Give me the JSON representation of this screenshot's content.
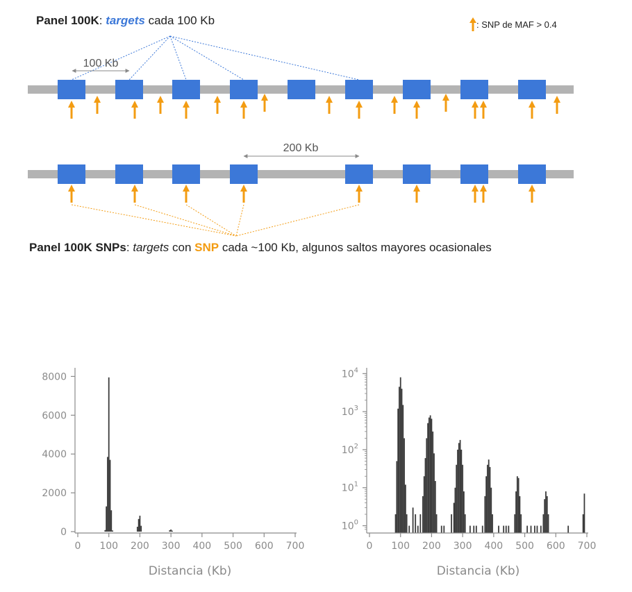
{
  "panel_top": {
    "name": "Panel 100K",
    "sep": ": ",
    "targets_word": "targets",
    "rest": " cada 100 Kb",
    "distance_label": "100 Kb"
  },
  "legend": {
    "text": ": SNP de MAF > 0.4",
    "arrow_color": "#f39c12"
  },
  "panel_bottom": {
    "name": "Panel 100K SNPs",
    "sep": ": ",
    "targets_word": "targets",
    "middle": " con ",
    "snp_word": "SNP",
    "rest": " cada ~100 Kb, algunos saltos mayores ocasionales",
    "distance_label": "200 Kb"
  },
  "colors": {
    "target_block": "#3c78d8",
    "chromosome": "#b3b3b3",
    "snp_arrow": "#f39c12",
    "bars": "#3a3a3a",
    "axis": "#8a8a8a"
  },
  "chart_data": [
    {
      "type": "bar",
      "scale": "linear",
      "xlabel": "Distancia (Kb)",
      "xticks": [
        0,
        100,
        200,
        300,
        400,
        500,
        600,
        700
      ],
      "yticks": [
        0,
        2000,
        4000,
        6000,
        8000
      ],
      "xlim": [
        0,
        700
      ],
      "ylim": [
        0,
        8300
      ],
      "bin_width": 4,
      "bins": [
        {
          "x": 88,
          "y": 80
        },
        {
          "x": 92,
          "y": 1300
        },
        {
          "x": 96,
          "y": 3850
        },
        {
          "x": 100,
          "y": 7950
        },
        {
          "x": 104,
          "y": 3700
        },
        {
          "x": 108,
          "y": 1100
        },
        {
          "x": 112,
          "y": 60
        },
        {
          "x": 192,
          "y": 250
        },
        {
          "x": 196,
          "y": 650
        },
        {
          "x": 200,
          "y": 820
        },
        {
          "x": 204,
          "y": 300
        },
        {
          "x": 296,
          "y": 70
        },
        {
          "x": 300,
          "y": 110
        },
        {
          "x": 304,
          "y": 50
        }
      ]
    },
    {
      "type": "bar",
      "scale": "log",
      "xlabel": "Distancia (Kb)",
      "xticks": [
        0,
        100,
        200,
        300,
        400,
        500,
        600,
        700
      ],
      "yticks": [
        1,
        10,
        100,
        1000,
        10000
      ],
      "ytick_labels": [
        [
          "10",
          "0"
        ],
        [
          "10",
          "1"
        ],
        [
          "10",
          "2"
        ],
        [
          "10",
          "3"
        ],
        [
          "10",
          "4"
        ]
      ],
      "xlim": [
        0,
        700
      ],
      "ylim": [
        0.7,
        12000
      ],
      "bin_width": 4,
      "bins": [
        {
          "x": 84,
          "y": 2
        },
        {
          "x": 88,
          "y": 50
        },
        {
          "x": 92,
          "y": 1200
        },
        {
          "x": 96,
          "y": 4500
        },
        {
          "x": 100,
          "y": 8000
        },
        {
          "x": 104,
          "y": 4000
        },
        {
          "x": 108,
          "y": 1500
        },
        {
          "x": 112,
          "y": 200
        },
        {
          "x": 116,
          "y": 12
        },
        {
          "x": 120,
          "y": 2
        },
        {
          "x": 128,
          "y": 1
        },
        {
          "x": 140,
          "y": 3
        },
        {
          "x": 148,
          "y": 2
        },
        {
          "x": 156,
          "y": 1
        },
        {
          "x": 164,
          "y": 2
        },
        {
          "x": 172,
          "y": 6
        },
        {
          "x": 176,
          "y": 20
        },
        {
          "x": 180,
          "y": 60
        },
        {
          "x": 184,
          "y": 200
        },
        {
          "x": 188,
          "y": 500
        },
        {
          "x": 192,
          "y": 700
        },
        {
          "x": 196,
          "y": 800
        },
        {
          "x": 200,
          "y": 650
        },
        {
          "x": 204,
          "y": 300
        },
        {
          "x": 208,
          "y": 80
        },
        {
          "x": 212,
          "y": 15
        },
        {
          "x": 216,
          "y": 2
        },
        {
          "x": 232,
          "y": 1
        },
        {
          "x": 240,
          "y": 1
        },
        {
          "x": 264,
          "y": 2
        },
        {
          "x": 272,
          "y": 4
        },
        {
          "x": 276,
          "y": 10
        },
        {
          "x": 280,
          "y": 40
        },
        {
          "x": 284,
          "y": 100
        },
        {
          "x": 288,
          "y": 150
        },
        {
          "x": 292,
          "y": 180
        },
        {
          "x": 296,
          "y": 100
        },
        {
          "x": 300,
          "y": 40
        },
        {
          "x": 304,
          "y": 8
        },
        {
          "x": 308,
          "y": 2
        },
        {
          "x": 324,
          "y": 1
        },
        {
          "x": 336,
          "y": 1
        },
        {
          "x": 344,
          "y": 1
        },
        {
          "x": 364,
          "y": 1
        },
        {
          "x": 372,
          "y": 6
        },
        {
          "x": 376,
          "y": 20
        },
        {
          "x": 380,
          "y": 40
        },
        {
          "x": 384,
          "y": 55
        },
        {
          "x": 388,
          "y": 35
        },
        {
          "x": 392,
          "y": 10
        },
        {
          "x": 396,
          "y": 2
        },
        {
          "x": 416,
          "y": 1
        },
        {
          "x": 432,
          "y": 1
        },
        {
          "x": 440,
          "y": 1
        },
        {
          "x": 448,
          "y": 1
        },
        {
          "x": 468,
          "y": 2
        },
        {
          "x": 472,
          "y": 8
        },
        {
          "x": 476,
          "y": 20
        },
        {
          "x": 480,
          "y": 18
        },
        {
          "x": 484,
          "y": 6
        },
        {
          "x": 488,
          "y": 2
        },
        {
          "x": 508,
          "y": 1
        },
        {
          "x": 520,
          "y": 1
        },
        {
          "x": 532,
          "y": 1
        },
        {
          "x": 540,
          "y": 1
        },
        {
          "x": 552,
          "y": 1
        },
        {
          "x": 560,
          "y": 2
        },
        {
          "x": 564,
          "y": 5
        },
        {
          "x": 568,
          "y": 8
        },
        {
          "x": 572,
          "y": 6
        },
        {
          "x": 576,
          "y": 2
        },
        {
          "x": 640,
          "y": 1
        },
        {
          "x": 688,
          "y": 2
        },
        {
          "x": 692,
          "y": 7
        }
      ]
    }
  ]
}
